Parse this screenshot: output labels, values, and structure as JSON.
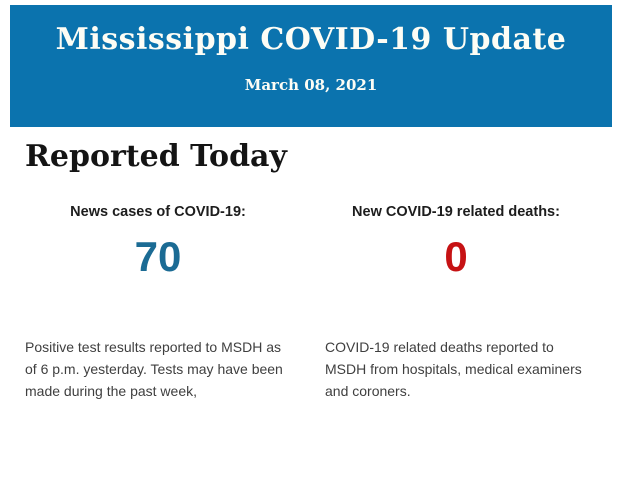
{
  "page": {
    "background_color": "#ffffff"
  },
  "header": {
    "title": "Mississippi COVID-19 Update",
    "date": "March 08, 2021",
    "background_color": "#0b73ae",
    "text_color": "#fdfdf5"
  },
  "main": {
    "heading": "Reported Today",
    "stats": [
      {
        "label": "News cases of COVID-19:",
        "value": "70",
        "value_color": "#1b6b94",
        "description": "Positive test results reported to MSDH as of 6 p.m. yesterday. Tests may have been made during the past week,"
      },
      {
        "label": "New COVID-19 related deaths:",
        "value": "0",
        "value_color": "#c61214",
        "description": "COVID-19 related deaths reported to MSDH from hospitals, medical examiners and coroners."
      }
    ]
  }
}
